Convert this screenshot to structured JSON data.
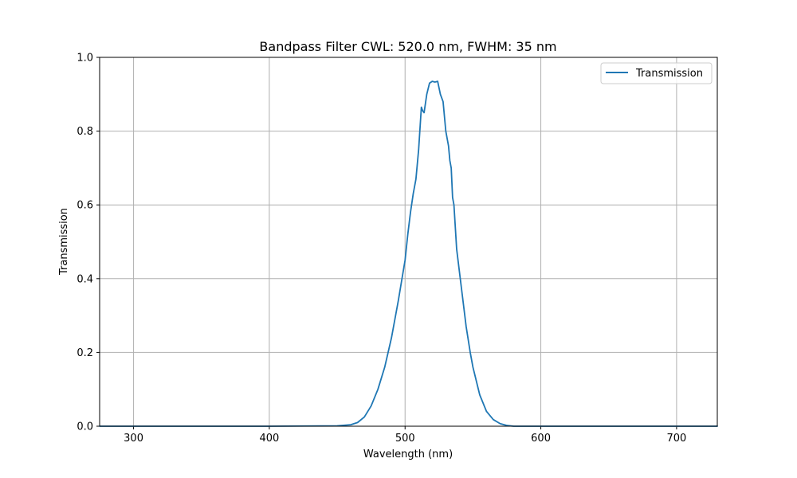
{
  "chart_data": {
    "type": "line",
    "title": "Bandpass Filter CWL: 520.0 nm, FWHM: 35 nm",
    "xlabel": "Wavelength (nm)",
    "ylabel": "Transmission",
    "xlim": [
      275,
      730
    ],
    "ylim": [
      0,
      1.0
    ],
    "grid": true,
    "legend_position": "top-right",
    "x_ticks": [
      300,
      400,
      500,
      600,
      700
    ],
    "y_ticks": [
      0.0,
      0.2,
      0.4,
      0.6,
      0.8,
      1.0
    ],
    "x_tick_labels": [
      "300",
      "400",
      "500",
      "600",
      "700"
    ],
    "y_tick_labels": [
      "0.0",
      "0.2",
      "0.4",
      "0.6",
      "0.8",
      "1.0"
    ],
    "series": [
      {
        "name": "Transmission",
        "color": "#1f77b4",
        "x": [
          275,
          300,
          350,
          400,
          450,
          460,
          465,
          470,
          475,
          480,
          485,
          490,
          495,
          500,
          502,
          504,
          506,
          508,
          510,
          512,
          513,
          514,
          516,
          518,
          520,
          522,
          524,
          526,
          528,
          530,
          532,
          533,
          534,
          535,
          536,
          538,
          540,
          542,
          545,
          548,
          550,
          555,
          560,
          565,
          570,
          575,
          580,
          590,
          600,
          650,
          700,
          730
        ],
        "y": [
          0.0,
          0.0,
          0.0,
          0.0,
          0.001,
          0.004,
          0.01,
          0.025,
          0.055,
          0.1,
          0.16,
          0.24,
          0.34,
          0.45,
          0.52,
          0.58,
          0.63,
          0.67,
          0.75,
          0.865,
          0.855,
          0.85,
          0.9,
          0.93,
          0.935,
          0.933,
          0.935,
          0.9,
          0.88,
          0.8,
          0.76,
          0.72,
          0.7,
          0.62,
          0.6,
          0.48,
          0.42,
          0.36,
          0.27,
          0.2,
          0.16,
          0.085,
          0.04,
          0.018,
          0.007,
          0.002,
          0.0,
          0.0,
          0.0,
          0.0,
          0.0,
          0.0
        ]
      }
    ]
  }
}
